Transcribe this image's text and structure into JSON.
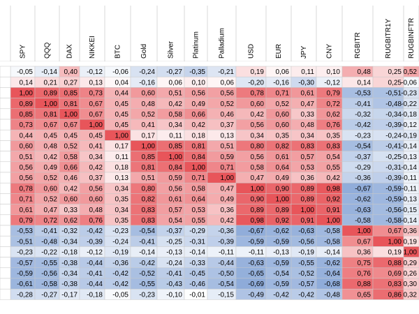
{
  "chart_data": {
    "type": "heatmap",
    "title": "",
    "xlabel": "",
    "ylabel": "",
    "columns": [
      "SPY",
      "QQQ",
      "DAX",
      "NIKKEI",
      "BTC",
      "Gold",
      "Silver",
      "Platinum",
      "Palladium",
      "USD",
      "EUR",
      "JPY",
      "CNY",
      "RGBITR",
      "RUGBITR1Y",
      "RUGBINFTR"
    ],
    "column_labels_visible": [
      "SPY",
      "QQQ",
      "DAX",
      "NIKKEI",
      "BTC",
      "Gold",
      "Silver",
      "Platinum",
      "Palladium",
      "USD",
      "EUR",
      "JPY",
      "CNY",
      "RGBITR",
      "RUGBITR1Y",
      "RUGBINFTR"
    ],
    "color_scale": {
      "negative": "#5b85c8",
      "neutral": "#ffffff",
      "positive": "#e8555a",
      "range": [
        -1,
        1
      ]
    },
    "values": [
      [
        "-0,05",
        "-0,14",
        "0,40",
        "-0,12",
        "-0,06",
        "-0,24",
        "-0,27",
        "-0,35",
        "-0,21",
        "0,19",
        "0,06",
        "0,11",
        "0,10",
        "0,48",
        "0,25",
        "0,52"
      ],
      [
        "0,14",
        "0,21",
        "0,27",
        "0,13",
        "0,04",
        "-0,16",
        "0,06",
        "0,10",
        "0,06",
        "-0,20",
        "-0,16",
        "-0,30",
        "-0,12",
        "0,14",
        "0,25",
        "-0,06"
      ],
      [
        "1,00",
        "0,89",
        "0,85",
        "0,73",
        "0,44",
        "0,60",
        "0,51",
        "0,56",
        "0,56",
        "0,78",
        "0,71",
        "0,61",
        "0,79",
        "-0,53",
        "-0,51",
        "-0,23"
      ],
      [
        "0,89",
        "1,00",
        "0,81",
        "0,67",
        "0,45",
        "0,48",
        "0,42",
        "0,49",
        "0,52",
        "0,60",
        "0,52",
        "0,47",
        "0,72",
        "-0,41",
        "-0,48",
        "-0,22"
      ],
      [
        "0,85",
        "0,81",
        "1,00",
        "0,67",
        "0,45",
        "0,52",
        "0,58",
        "0,66",
        "0,46",
        "0,42",
        "0,60",
        "0,33",
        "0,62",
        "-0,32",
        "-0,34",
        "-0,18"
      ],
      [
        "0,73",
        "0,67",
        "0,67",
        "1,00",
        "0,45",
        "0,41",
        "0,34",
        "0,42",
        "0,37",
        "0,56",
        "0,60",
        "0,48",
        "0,76",
        "-0,42",
        "-0,39",
        "-0,12"
      ],
      [
        "0,44",
        "0,45",
        "0,45",
        "0,45",
        "1,00",
        "0,17",
        "0,11",
        "0,18",
        "0,13",
        "0,34",
        "0,35",
        "0,34",
        "0,35",
        "-0,23",
        "-0,24",
        "-0,19"
      ],
      [
        "0,60",
        "0,48",
        "0,52",
        "0,41",
        "0,17",
        "1,00",
        "0,85",
        "0,81",
        "0,51",
        "0,80",
        "0,82",
        "0,83",
        "0,83",
        "-0,54",
        "-0,41",
        "-0,14"
      ],
      [
        "0,51",
        "0,42",
        "0,58",
        "0,34",
        "0,11",
        "0,85",
        "1,00",
        "0,84",
        "0,59",
        "0,56",
        "0,61",
        "0,57",
        "0,54",
        "-0,37",
        "-0,25",
        "-0,13"
      ],
      [
        "0,56",
        "0,49",
        "0,66",
        "0,42",
        "0,18",
        "0,81",
        "0,84",
        "1,00",
        "0,71",
        "0,58",
        "0,64",
        "0,53",
        "0,55",
        "-0,29",
        "-0,31",
        "-0,14"
      ],
      [
        "0,56",
        "0,52",
        "0,46",
        "0,37",
        "0,13",
        "0,51",
        "0,59",
        "0,71",
        "1,00",
        "0,47",
        "0,49",
        "0,36",
        "0,42",
        "-0,36",
        "-0,39",
        "-0,11"
      ],
      [
        "0,78",
        "0,60",
        "0,42",
        "0,56",
        "0,34",
        "0,80",
        "0,56",
        "0,58",
        "0,47",
        "1,00",
        "0,90",
        "0,89",
        "0,98",
        "-0,67",
        "-0,59",
        "-0,11"
      ],
      [
        "0,71",
        "0,52",
        "0,60",
        "0,60",
        "0,35",
        "0,82",
        "0,61",
        "0,64",
        "0,49",
        "0,90",
        "1,00",
        "0,89",
        "0,92",
        "-0,62",
        "-0,59",
        "-0,13"
      ],
      [
        "0,61",
        "0,47",
        "0,33",
        "0,48",
        "0,34",
        "0,83",
        "0,57",
        "0,53",
        "0,36",
        "0,89",
        "0,89",
        "1,00",
        "0,91",
        "-0,63",
        "-0,56",
        "-0,15"
      ],
      [
        "0,79",
        "0,72",
        "0,62",
        "0,76",
        "0,35",
        "0,83",
        "0,54",
        "0,55",
        "0,42",
        "0,98",
        "0,92",
        "0,91",
        "1,00",
        "-0,58",
        "-0,58",
        "-0,14"
      ],
      [
        "-0,53",
        "-0,41",
        "-0,32",
        "-0,42",
        "-0,23",
        "-0,54",
        "-0,37",
        "-0,29",
        "-0,36",
        "-0,67",
        "-0,62",
        "-0,63",
        "-0,58",
        "1,00",
        "0,67",
        "0,36"
      ],
      [
        "-0,51",
        "-0,48",
        "-0,34",
        "-0,39",
        "-0,24",
        "-0,41",
        "-0,25",
        "-0,31",
        "-0,39",
        "-0,59",
        "-0,59",
        "-0,56",
        "-0,58",
        "0,67",
        "1,00",
        "0,19"
      ],
      [
        "-0,23",
        "-0,22",
        "-0,18",
        "-0,12",
        "-0,19",
        "-0,14",
        "-0,13",
        "-0,14",
        "-0,11",
        "-0,11",
        "-0,13",
        "-0,19",
        "-0,14",
        "0,36",
        "0,19",
        "1,00"
      ],
      [
        "-0,57",
        "-0,55",
        "-0,38",
        "-0,44",
        "-0,36",
        "-0,42",
        "-0,24",
        "-0,33",
        "-0,44",
        "-0,63",
        "-0,59",
        "-0,55",
        "-0,62",
        "0,75",
        "0,88",
        "0,29"
      ],
      [
        "-0,59",
        "-0,56",
        "-0,34",
        "-0,41",
        "-0,42",
        "-0,52",
        "-0,41",
        "-0,45",
        "-0,50",
        "-0,65",
        "-0,54",
        "-0,52",
        "-0,64",
        "0,76",
        "0,69",
        "0,26"
      ],
      [
        "-0,61",
        "-0,58",
        "-0,38",
        "-0,44",
        "-0,42",
        "-0,55",
        "-0,43",
        "-0,46",
        "-0,54",
        "-0,69",
        "-0,59",
        "-0,57",
        "-0,68",
        "0,88",
        "0,83",
        "0,30"
      ],
      [
        "-0,28",
        "-0,27",
        "-0,17",
        "-0,18",
        "-0,05",
        "-0,23",
        "-0,10",
        "-0,01",
        "-0,15",
        "-0,49",
        "-0,42",
        "-0,42",
        "-0,48",
        "0,65",
        "0,86",
        "0,32"
      ]
    ]
  }
}
